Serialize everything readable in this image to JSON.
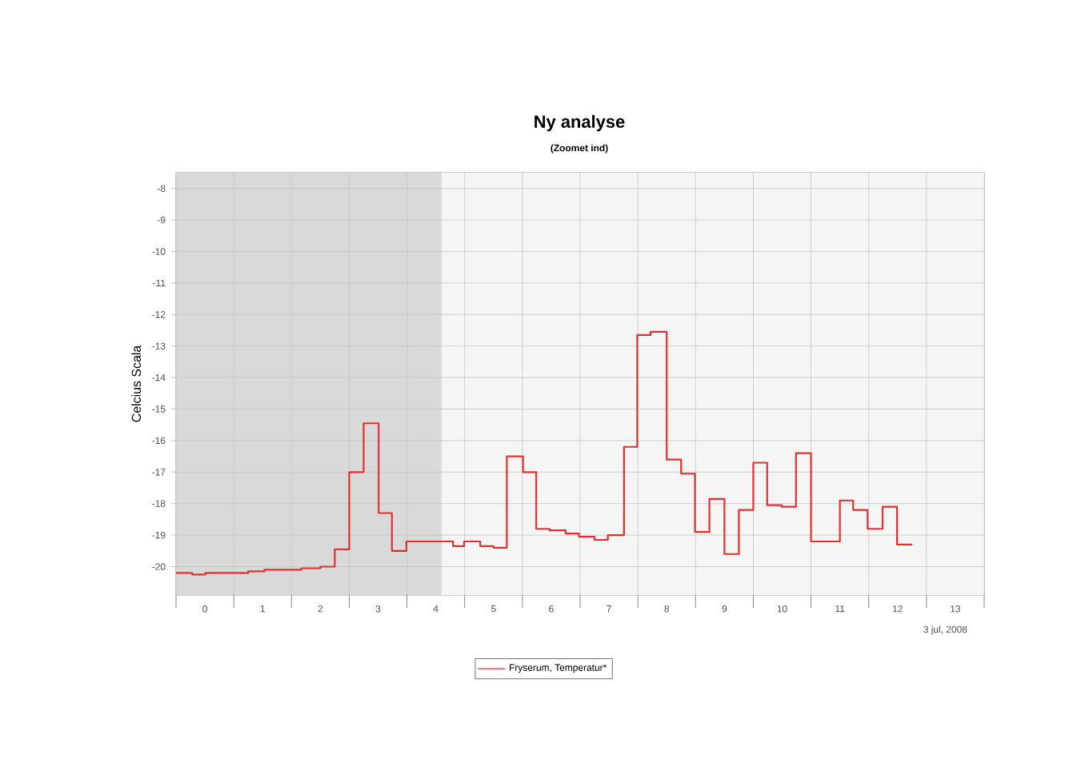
{
  "chart_data": {
    "type": "step",
    "title": "Ny analyse",
    "subtitle": "(Zoomet ind)",
    "ylabel": "Celcius Scala",
    "annotations": [
      "3 jul, 2008"
    ],
    "x": [
      -0.5,
      -0.22,
      0.01,
      0.75,
      1.03,
      1.67,
      2.0,
      2.25,
      2.5,
      2.75,
      3.01,
      3.24,
      3.49,
      4.3,
      4.49,
      4.77,
      5.0,
      5.23,
      5.51,
      5.74,
      5.97,
      6.25,
      6.48,
      6.75,
      6.98,
      7.26,
      7.49,
      7.72,
      8.0,
      8.25,
      8.49,
      8.74,
      9.0,
      9.25,
      9.5,
      9.74,
      9.99,
      10.24,
      10.5,
      11.0,
      11.23,
      11.48,
      11.74,
      11.99,
      12.25
    ],
    "series": [
      {
        "name": "Fryserum, Temperatur*",
        "color": "#e03030",
        "values": [
          -20.2,
          -20.25,
          -20.2,
          -20.15,
          -20.1,
          -20.05,
          -20.0,
          -19.45,
          -17.0,
          -15.45,
          -18.3,
          -19.5,
          -19.2,
          -19.35,
          -19.2,
          -19.35,
          -19.4,
          -16.5,
          -17.0,
          -18.8,
          -18.85,
          -18.95,
          -19.05,
          -19.15,
          -19.0,
          -16.2,
          -12.65,
          -12.55,
          -16.6,
          -17.05,
          -18.9,
          -17.85,
          -19.6,
          -18.2,
          -16.7,
          -18.05,
          -18.1,
          -16.4,
          -19.2,
          -17.9,
          -18.2,
          -18.8,
          -18.1,
          -19.3,
          -19.3
        ]
      }
    ],
    "xlim": [
      -0.5,
      13.5
    ],
    "xticks": [
      {
        "value": -0.5,
        "label": null
      },
      0,
      {
        "value": 0.5,
        "label": null
      },
      1,
      {
        "value": 1.5,
        "label": null
      },
      2,
      {
        "value": 2.5,
        "label": null
      },
      3,
      {
        "value": 3.5,
        "label": null
      },
      4,
      {
        "value": 4.5,
        "label": null
      },
      5,
      {
        "value": 5.5,
        "label": null
      },
      6,
      {
        "value": 6.5,
        "label": null
      },
      7,
      {
        "value": 7.5,
        "label": null
      },
      8,
      {
        "value": 8.5,
        "label": null
      },
      9,
      {
        "value": 9.5,
        "label": null
      },
      10,
      {
        "value": 10.5,
        "label": null
      },
      11,
      {
        "value": 11.5,
        "label": null
      },
      12,
      {
        "value": 12.5,
        "label": null
      },
      13,
      {
        "value": 13.5,
        "label": null
      }
    ],
    "ylim": [
      -20.9,
      -7.5
    ],
    "yticks": [
      -20,
      -19,
      -18,
      -17,
      -16,
      -15,
      -14,
      -13,
      -12,
      -11,
      -10,
      -9,
      -8
    ],
    "bands": [
      {
        "axis": "x",
        "from": -0.5,
        "to": 4.1,
        "color": "#d9d9d9"
      }
    ],
    "grid": true,
    "legend": "bottom",
    "marker": "none",
    "line_style": "solid"
  }
}
